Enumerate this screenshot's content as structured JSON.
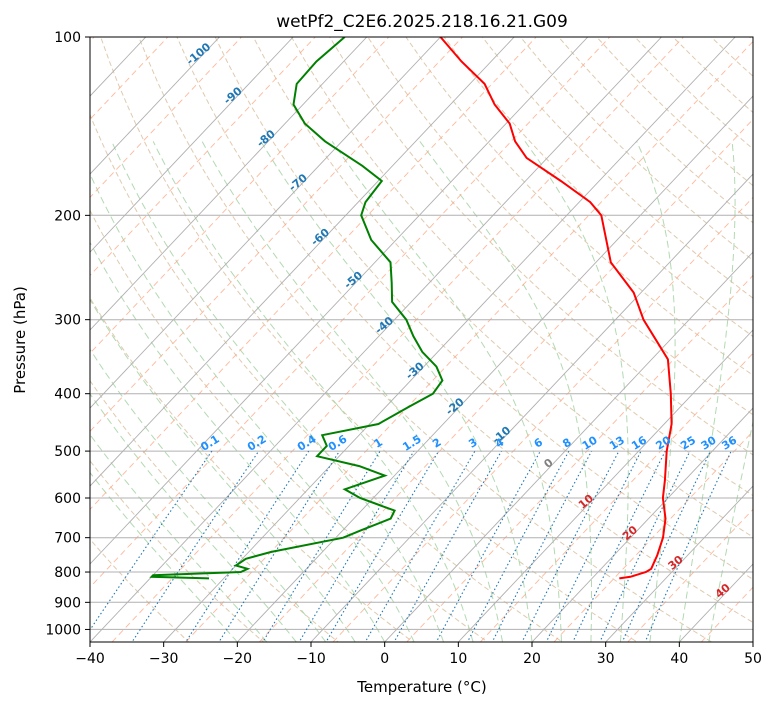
{
  "chart_data": {
    "type": "line",
    "title": "wetPf2_C2E6.2025.218.16.21.G09",
    "xlabel": "Temperature (°C)",
    "ylabel": "Pressure (hPa)",
    "xlim": [
      -40,
      50
    ],
    "ylim": [
      1050,
      100
    ],
    "y_scale": "log",
    "x_ticks": [
      "−40",
      "−30",
      "−20",
      "−10",
      "0",
      "10",
      "20",
      "30",
      "40",
      "50"
    ],
    "y_ticks": [
      "100",
      "200",
      "300",
      "400",
      "500",
      "600",
      "700",
      "800",
      "900",
      "1000"
    ],
    "grid": true,
    "series": [
      {
        "color": "#ff0000",
        "p": [
          820,
          815,
          800,
          790,
          750,
          700,
          650,
          600,
          560,
          500,
          450,
          400,
          350,
          330,
          300,
          270,
          240,
          200,
          190,
          175,
          160,
          150,
          140,
          130,
          120,
          110,
          100
        ],
        "t": [
          23.7,
          25.0,
          26.5,
          26.8,
          25.9,
          24.4,
          22.3,
          19.3,
          17.3,
          13.8,
          11.0,
          7.0,
          2.2,
          -1.0,
          -6.2,
          -11.0,
          -18.0,
          -25.3,
          -28.5,
          -35.2,
          -42.8,
          -46.5,
          -49.5,
          -54.0,
          -58.0,
          -64.0,
          -70.0
        ]
      },
      {
        "color": "#008000",
        "p": [
          820,
          815,
          810,
          800,
          790,
          780,
          760,
          740,
          700,
          680,
          650,
          630,
          600,
          580,
          550,
          530,
          510,
          490,
          470,
          450,
          420,
          400,
          380,
          360,
          340,
          320,
          300,
          280,
          260,
          240,
          220,
          200,
          190,
          175,
          165,
          150,
          140,
          130,
          120,
          110,
          100
        ],
        "t": [
          -32.0,
          -40.0,
          -40.0,
          -28.5,
          -28.0,
          -30.0,
          -29.5,
          -27.0,
          -19.0,
          -17.5,
          -15.0,
          -15.5,
          -21.8,
          -25.0,
          -21.3,
          -26.0,
          -33.0,
          -33.0,
          -35.0,
          -28.8,
          -26.8,
          -25.3,
          -25.7,
          -28.3,
          -32.1,
          -35.3,
          -38.4,
          -42.6,
          -45.1,
          -47.9,
          -53.4,
          -57.9,
          -59.0,
          -59.5,
          -64.1,
          -72.3,
          -77.3,
          -81.3,
          -83.5,
          -83.7,
          -83.0
        ]
      }
    ],
    "overlay_lines": [
      {
        "name": "dry adiabats",
        "color": "#d2b48c",
        "style": "dashed"
      },
      {
        "name": "moist adiabats",
        "color": "#aad5aa",
        "style": "dashed"
      },
      {
        "name": "isotherms (skewed)",
        "color": "#b0b0b0",
        "style": "solid"
      },
      {
        "name": "mixing ratio lines",
        "color": "#1f77b4",
        "style": "dotted"
      }
    ],
    "mixing_ratio_labels": [
      "0.1",
      "0.2",
      "0.4",
      "0.6",
      "1",
      "1.5",
      "2",
      "3",
      "4",
      "6",
      "8",
      "10",
      "13",
      "16",
      "20",
      "25",
      "30",
      "36"
    ],
    "isotherm_labels": {
      "cold": [
        "-100",
        "-90",
        "-80",
        "-70",
        "-60",
        "-50",
        "-40",
        "-30",
        "-20",
        "-10"
      ],
      "zero": "0",
      "warm": [
        "10",
        "20",
        "30",
        "40"
      ]
    }
  }
}
